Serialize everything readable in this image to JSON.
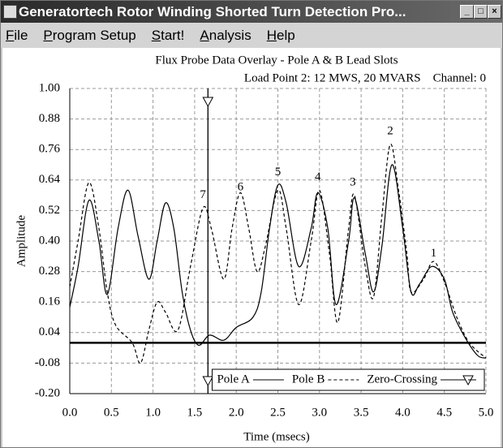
{
  "window": {
    "title": "Generatortech Rotor Winding Shorted Turn Detection Pro..."
  },
  "menu": [
    "File",
    "Program Setup",
    "Start!",
    "Analysis",
    "Help"
  ],
  "chart_data": {
    "type": "line",
    "title": "Flux Probe Data Overlay - Pole A & B Lead Slots",
    "subtitle": "Load Point 2: 12 MWS, 20 MVARS    Channel: 0",
    "x_label": "Time (msecs)",
    "y_label": "Amplitude",
    "xlim": [
      0,
      5
    ],
    "ylim": [
      -0.2,
      1
    ],
    "xticks": [
      {
        "value": 0,
        "label": "0.0"
      },
      0.5,
      {
        "value": 1,
        "label": "1.0"
      },
      1.5,
      {
        "value": 2,
        "label": "2.0"
      },
      2.5,
      {
        "value": 3,
        "label": "3.0"
      },
      3.5,
      {
        "value": 4,
        "label": "4.0"
      },
      4.5,
      {
        "value": 5,
        "label": "5.0"
      }
    ],
    "yticks": [
      {
        "value": 1,
        "label": "1.00"
      },
      0.88,
      0.76,
      0.64,
      0.52,
      {
        "value": 0.4,
        "label": "0.40"
      },
      0.28,
      0.16,
      0.04,
      -0.08,
      {
        "value": -0.2,
        "label": "-0.20"
      }
    ],
    "grid": true,
    "legend": "lower right",
    "series": [
      {
        "name": "Pole A",
        "color": "#000000",
        "dash": "solid",
        "x": [
          0,
          0.1,
          0.23,
          0.35,
          0.45,
          0.58,
          0.7,
          0.82,
          0.95,
          1.05,
          1.15,
          1.25,
          1.35,
          1.45,
          1.55,
          1.68,
          1.85,
          2.0,
          2.2,
          2.3,
          2.4,
          2.5,
          2.6,
          2.75,
          2.9,
          2.98,
          3.1,
          3.2,
          3.35,
          3.42,
          3.55,
          3.65,
          3.75,
          3.87,
          4.0,
          4.1,
          4.2,
          4.35,
          4.5,
          4.6,
          4.75,
          4.9,
          5.0
        ],
        "values": [
          0.14,
          0.3,
          0.56,
          0.4,
          0.19,
          0.45,
          0.6,
          0.42,
          0.25,
          0.4,
          0.55,
          0.45,
          0.2,
          0.05,
          -0.01,
          0.03,
          0.01,
          0.06,
          0.1,
          0.2,
          0.45,
          0.62,
          0.55,
          0.3,
          0.45,
          0.59,
          0.45,
          0.15,
          0.4,
          0.57,
          0.35,
          0.2,
          0.38,
          0.7,
          0.45,
          0.2,
          0.23,
          0.3,
          0.25,
          0.12,
          0.02,
          -0.05,
          -0.06
        ]
      },
      {
        "name": "Pole B",
        "color": "#000000",
        "dash": "dashed",
        "x": [
          0,
          0.1,
          0.23,
          0.35,
          0.45,
          0.55,
          0.75,
          0.85,
          0.95,
          1.05,
          1.15,
          1.3,
          1.45,
          1.6,
          1.7,
          1.85,
          1.95,
          2.05,
          2.15,
          2.25,
          2.35,
          2.5,
          2.6,
          2.75,
          2.9,
          3.0,
          3.12,
          3.22,
          3.35,
          3.42,
          3.55,
          3.65,
          3.75,
          3.85,
          3.95,
          4.05,
          4.1,
          4.25,
          4.37,
          4.5,
          4.65,
          4.8,
          5.0
        ],
        "values": [
          0.22,
          0.4,
          0.63,
          0.45,
          0.2,
          0.07,
          0.0,
          -0.08,
          0.05,
          0.16,
          0.12,
          0.05,
          0.3,
          0.53,
          0.45,
          0.25,
          0.45,
          0.59,
          0.45,
          0.28,
          0.38,
          0.6,
          0.45,
          0.15,
          0.4,
          0.6,
          0.35,
          0.08,
          0.45,
          0.58,
          0.3,
          0.18,
          0.5,
          0.78,
          0.6,
          0.35,
          0.2,
          0.25,
          0.32,
          0.24,
          0.1,
          0.0,
          -0.06
        ]
      }
    ],
    "zero_crossing": {
      "name": "Zero-Crossing",
      "x": 1.66
    },
    "annotations": [
      {
        "text": "1",
        "x": 4.37,
        "y": 0.35
      },
      {
        "text": "2",
        "x": 3.85,
        "y": 0.83
      },
      {
        "text": "3",
        "x": 3.4,
        "y": 0.63
      },
      {
        "text": "4",
        "x": 2.98,
        "y": 0.65
      },
      {
        "text": "5",
        "x": 2.5,
        "y": 0.67
      },
      {
        "text": "6",
        "x": 2.05,
        "y": 0.61
      },
      {
        "text": "7",
        "x": 1.6,
        "y": 0.58
      }
    ]
  }
}
